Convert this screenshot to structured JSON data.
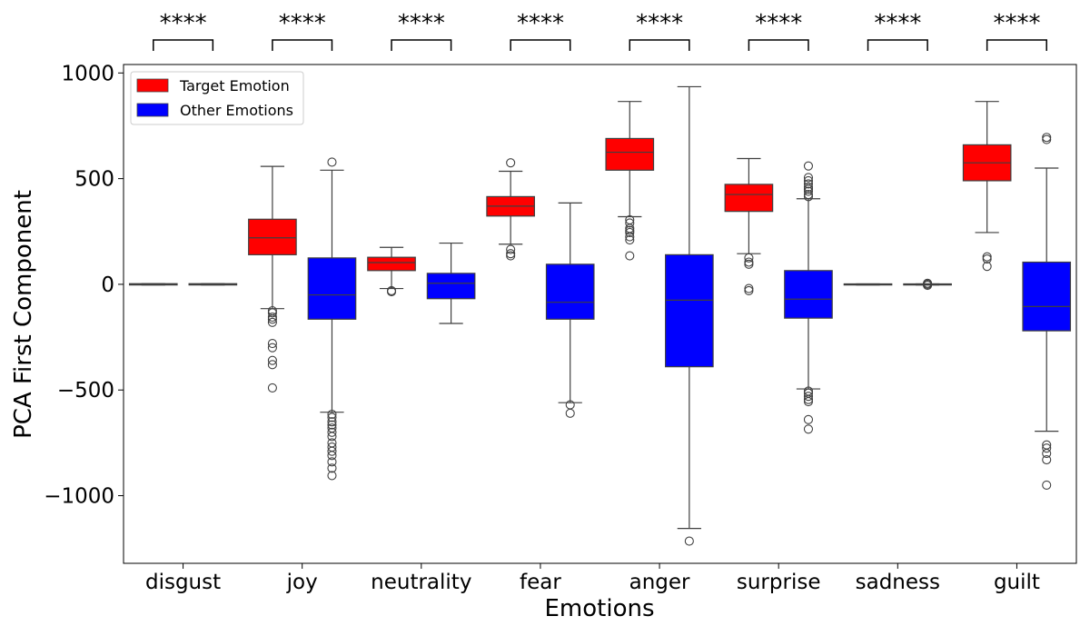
{
  "chart_data": {
    "type": "boxplot",
    "xlabel": "Emotions",
    "ylabel": "PCA First Component",
    "ylim": [
      -1320,
      1040
    ],
    "yticks": [
      1000,
      500,
      0,
      -500,
      -1000
    ],
    "ytick_labels": [
      "1000",
      "500",
      "0",
      "−500",
      "−1000"
    ],
    "grid": false,
    "legend_position": "top-left",
    "categories": [
      "disgust",
      "joy",
      "neutrality",
      "fear",
      "anger",
      "surprise",
      "sadness",
      "guilt"
    ],
    "significance": [
      "****",
      "****",
      "****",
      "****",
      "****",
      "****",
      "****",
      "****"
    ],
    "series": [
      {
        "name": "Target Emotion",
        "color": "#ff0000",
        "boxes": [
          {
            "q1": -3,
            "median": 0,
            "q3": 3,
            "whisker_low": -3,
            "whisker_high": 3,
            "outliers": []
          },
          {
            "q1": 140,
            "median": 220,
            "q3": 308,
            "whisker_low": -115,
            "whisker_high": 558,
            "outliers": [
              -125,
              -135,
              -155,
              -165,
              -180,
              -280,
              -300,
              -360,
              -380,
              -490
            ]
          },
          {
            "q1": 65,
            "median": 103,
            "q3": 128,
            "whisker_low": -20,
            "whisker_high": 175,
            "outliers": [
              -30,
              -35
            ]
          },
          {
            "q1": 323,
            "median": 370,
            "q3": 415,
            "whisker_low": 190,
            "whisker_high": 535,
            "outliers": [
              575,
              165,
              145,
              135
            ]
          },
          {
            "q1": 540,
            "median": 625,
            "q3": 690,
            "whisker_low": 320,
            "whisker_high": 865,
            "outliers": [
              305,
              290,
              265,
              255,
              245,
              225,
              210,
              135
            ]
          },
          {
            "q1": 345,
            "median": 425,
            "q3": 473,
            "whisker_low": 145,
            "whisker_high": 595,
            "outliers": [
              125,
              105,
              95,
              -20,
              -30
            ]
          },
          {
            "q1": -3,
            "median": 0,
            "q3": 2,
            "whisker_low": -3,
            "whisker_high": 2,
            "outliers": []
          },
          {
            "q1": 490,
            "median": 575,
            "q3": 660,
            "whisker_low": 245,
            "whisker_high": 865,
            "outliers": [
              130,
              120,
              85
            ]
          }
        ]
      },
      {
        "name": "Other Emotions",
        "color": "#0000ff",
        "boxes": [
          {
            "q1": -3,
            "median": 0,
            "q3": 3,
            "whisker_low": -3,
            "whisker_high": 3,
            "outliers": []
          },
          {
            "q1": -165,
            "median": -50,
            "q3": 125,
            "whisker_low": -605,
            "whisker_high": 540,
            "outliers": [
              578,
              -615,
              -630,
              -650,
              -665,
              -680,
              -700,
              -720,
              -750,
              -770,
              -790,
              -810,
              -840,
              -870,
              -905
            ]
          },
          {
            "q1": -68,
            "median": 5,
            "q3": 52,
            "whisker_low": -185,
            "whisker_high": 195,
            "outliers": []
          },
          {
            "q1": -165,
            "median": -85,
            "q3": 95,
            "whisker_low": -560,
            "whisker_high": 385,
            "outliers": [
              -570,
              -610
            ]
          },
          {
            "q1": -390,
            "median": -75,
            "q3": 140,
            "whisker_low": -1155,
            "whisker_high": 935,
            "outliers": [
              -1215
            ]
          },
          {
            "q1": -160,
            "median": -70,
            "q3": 65,
            "whisker_low": -495,
            "whisker_high": 405,
            "outliers": [
              560,
              505,
              490,
              475,
              460,
              450,
              440,
              425,
              415,
              -505,
              -515,
              -530,
              -545,
              -555,
              -640,
              -685
            ]
          },
          {
            "q1": -3,
            "median": 0,
            "q3": 2,
            "whisker_low": -3,
            "whisker_high": 2,
            "outliers": [
              5,
              0,
              -5
            ]
          },
          {
            "q1": -220,
            "median": -105,
            "q3": 105,
            "whisker_low": -695,
            "whisker_high": 550,
            "outliers": [
              695,
              685,
              -760,
              -775,
              -800,
              -830,
              -950
            ]
          }
        ]
      }
    ]
  }
}
